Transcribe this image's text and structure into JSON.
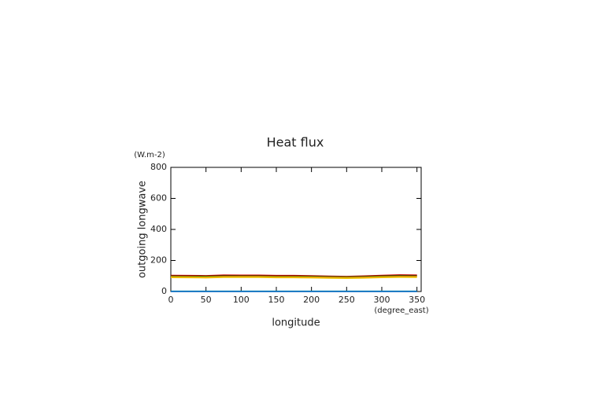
{
  "chart_data": {
    "type": "line",
    "title": "Heat flux",
    "y_label": "outgoing longwave",
    "y_unit": "(W.m-2)",
    "x_label": "longitude",
    "x_unit": "(degree_east)",
    "x": [
      0,
      25,
      50,
      75,
      100,
      125,
      150,
      175,
      200,
      225,
      250,
      275,
      300,
      325,
      350
    ],
    "series": [
      {
        "color": "#e00000",
        "values": [
          104,
          103,
          102,
          106,
          105,
          105,
          103,
          103,
          101,
          99,
          97,
          100,
          104,
          107,
          106
        ]
      },
      {
        "color": "#800000",
        "values": [
          101,
          100,
          99,
          103,
          102,
          102,
          100,
          100,
          98,
          96,
          95,
          97,
          101,
          104,
          103
        ]
      },
      {
        "color": "#00a000",
        "values": [
          98,
          97,
          97,
          99,
          99,
          99,
          97,
          97,
          96,
          94,
          93,
          95,
          98,
          100,
          99
        ]
      },
      {
        "color": "#ff8000",
        "values": [
          95,
          94,
          93,
          96,
          96,
          96,
          94,
          94,
          93,
          91,
          90,
          92,
          95,
          97,
          96
        ]
      },
      {
        "color": "#e8c800",
        "values": [
          90,
          89,
          88,
          91,
          91,
          91,
          89,
          89,
          88,
          86,
          85,
          87,
          90,
          92,
          91
        ]
      },
      {
        "color": "#00a0a0",
        "values": [
          2,
          2,
          2,
          2,
          2,
          2,
          2,
          2,
          2,
          2,
          2,
          2,
          2,
          2,
          2
        ]
      },
      {
        "color": "#0060c0",
        "values": [
          0,
          0,
          0,
          0,
          0,
          0,
          0,
          0,
          0,
          0,
          0,
          0,
          0,
          0,
          0
        ]
      }
    ],
    "xlim": [
      0,
      356
    ],
    "xticks": [
      0,
      50,
      100,
      150,
      200,
      250,
      300,
      350
    ],
    "ylim": [
      0,
      800
    ],
    "yticks": [
      0,
      200,
      400,
      600,
      800
    ]
  }
}
